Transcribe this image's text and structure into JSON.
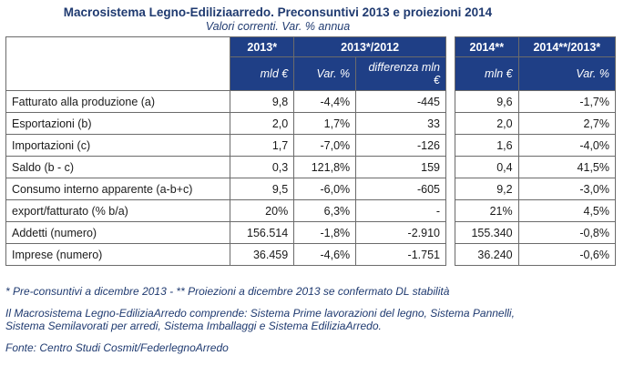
{
  "title": "Macrosistema Legno-Ediliziaarredo. Preconsuntivi 2013 e proiezioni 2014",
  "subtitle": "Valori correnti. Var. % annua",
  "main_table": {
    "head1": [
      "2013*",
      "2013*/2012"
    ],
    "head2": [
      "mld €",
      "Var. %",
      "differenza mln €"
    ],
    "rows": [
      {
        "label": "Fatturato alla produzione (a)",
        "v1": "9,8",
        "v2": "-4,4%",
        "v3": "-445"
      },
      {
        "label": "Esportazioni (b)",
        "v1": "2,0",
        "v2": "1,7%",
        "v3": "33"
      },
      {
        "label": "Importazioni (c)",
        "v1": "1,7",
        "v2": "-7,0%",
        "v3": "-126"
      },
      {
        "label": "Saldo (b - c)",
        "v1": "0,3",
        "v2": "121,8%",
        "v3": "159"
      },
      {
        "label": "Consumo interno apparente (a-b+c)",
        "v1": "9,5",
        "v2": "-6,0%",
        "v3": "-605"
      },
      {
        "label": "export/fatturato (% b/a)",
        "v1": "20%",
        "v2": "6,3%",
        "v3": "-"
      },
      {
        "label": "Addetti (numero)",
        "v1": "156.514",
        "v2": "-1,8%",
        "v3": "-2.910"
      },
      {
        "label": "Imprese (numero)",
        "v1": "36.459",
        "v2": "-4,6%",
        "v3": "-1.751"
      }
    ]
  },
  "proj_table": {
    "head1": [
      "2014**",
      "2014**/2013*"
    ],
    "head2": [
      "mln €",
      "Var. %"
    ],
    "rows": [
      {
        "v1": "9,6",
        "v2": "-1,7%"
      },
      {
        "v1": "2,0",
        "v2": "2,7%"
      },
      {
        "v1": "1,6",
        "v2": "-4,0%"
      },
      {
        "v1": "0,4",
        "v2": "41,5%"
      },
      {
        "v1": "9,2",
        "v2": "-3,0%"
      },
      {
        "v1": "21%",
        "v2": "4,5%"
      },
      {
        "v1": "155.340",
        "v2": "-0,8%"
      },
      {
        "v1": "36.240",
        "v2": "-0,6%"
      }
    ]
  },
  "notes": {
    "footnote": "* Pre-consuntivi a dicembre 2013 - ** Proiezioni a dicembre 2013 se confermato DL stabilità",
    "composition_1": "Il Macrosistema Legno-EdiliziaArredo comprende: Sistema Prime lavorazioni del legno, Sistema Pannelli,",
    "composition_2": "Sistema Semilavorati per arredi, Sistema Imballaggi e Sistema EdiliziaArredo.",
    "source": "Fonte: Centro Studi Cosmit/FederlegnoArredo"
  }
}
